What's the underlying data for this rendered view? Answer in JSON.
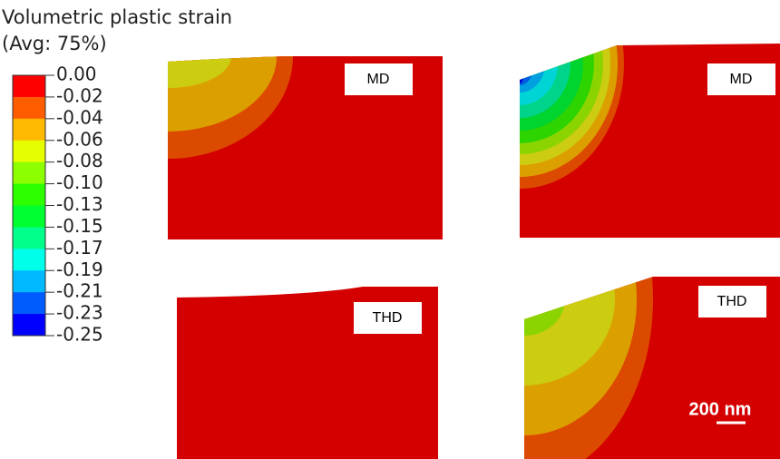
{
  "legend": {
    "title": "Volumetric plastic strain",
    "subtitle": "(Avg: 75%)",
    "labels": [
      "0.00",
      "-0.02",
      "-0.04",
      "-0.06",
      "-0.08",
      "-0.10",
      "-0.13",
      "-0.15",
      "-0.17",
      "-0.19",
      "-0.21",
      "-0.23",
      "-0.25"
    ],
    "colors": [
      "#ff0000",
      "#ff5c00",
      "#ffb900",
      "#e5ff00",
      "#8cff00",
      "#2eff00",
      "#00ff2e",
      "#00ff8b",
      "#00ffe8",
      "#00b9ff",
      "#005cff",
      "#0000ff"
    ]
  },
  "panels": [
    {
      "label": "MD"
    },
    {
      "label": "MD"
    },
    {
      "label": "THD"
    },
    {
      "label": "THD"
    }
  ],
  "scale_bar": "200 nm"
}
